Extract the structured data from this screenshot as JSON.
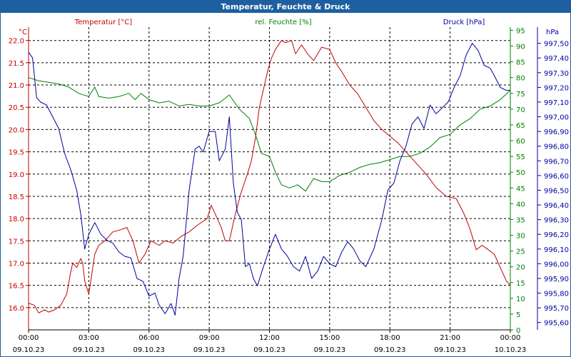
{
  "window": {
    "title": "Temperatur, Feuchte & Druck"
  },
  "colors": {
    "temperature": "#c00000",
    "humidity": "#008000",
    "pressure": "#0000a0",
    "axis": "#000000",
    "grid": "#000000"
  },
  "chart_data": {
    "type": "line",
    "title": "Temperatur, Feuchte & Druck",
    "x_ticks": [
      {
        "h": 0,
        "time": "00:00",
        "date": "09.10.23"
      },
      {
        "h": 3,
        "time": "03:00",
        "date": "09.10.23"
      },
      {
        "h": 6,
        "time": "06:00",
        "date": "09.10.23"
      },
      {
        "h": 9,
        "time": "09:00",
        "date": "09.10.23"
      },
      {
        "h": 12,
        "time": "12:00",
        "date": "09.10.23"
      },
      {
        "h": 15,
        "time": "15:00",
        "date": "09.10.23"
      },
      {
        "h": 18,
        "time": "18:00",
        "date": "09.10.23"
      },
      {
        "h": 21,
        "time": "21:00",
        "date": "09.10.23"
      },
      {
        "h": 24,
        "time": "00:00",
        "date": "10.10.23"
      }
    ],
    "xlim": [
      0,
      24
    ],
    "axes": {
      "temperature": {
        "label": "Temperatur [°C]",
        "unit": "°C",
        "ylim": [
          15.5,
          22.3
        ],
        "ticks": [
          "16.0",
          "16.5",
          "17.0",
          "17.5",
          "18.0",
          "18.5",
          "19.0",
          "19.5",
          "20.0",
          "20.5",
          "21.0",
          "21.5",
          "22.0"
        ]
      },
      "humidity": {
        "label": "rel. Feuchte [%]",
        "unit": "%",
        "ylim": [
          0,
          96
        ],
        "ticks": [
          "0",
          "5",
          "10",
          "15",
          "20",
          "25",
          "30",
          "35",
          "40",
          "45",
          "50",
          "55",
          "60",
          "65",
          "70",
          "75",
          "80",
          "85",
          "90",
          "95"
        ]
      },
      "pressure": {
        "label": "Druck [hPa]",
        "unit": "hPa",
        "ylim": [
          995.55,
          997.61
        ],
        "ticks": [
          "995,60",
          "995,70",
          "995,80",
          "995,90",
          "996,00",
          "996,10",
          "996,20",
          "996,30",
          "996,40",
          "996,50",
          "996,60",
          "996,70",
          "996,80",
          "996,90",
          "997,00",
          "997,10",
          "997,20",
          "997,30",
          "997,40",
          "997,50"
        ]
      }
    },
    "series": [
      {
        "name": "Temperatur",
        "axis": "temperature",
        "color": "#c00000",
        "points": [
          [
            0,
            16.1
          ],
          [
            0.3,
            16.05
          ],
          [
            0.5,
            15.88
          ],
          [
            0.8,
            15.95
          ],
          [
            1.0,
            15.9
          ],
          [
            1.3,
            15.95
          ],
          [
            1.6,
            16.05
          ],
          [
            1.9,
            16.3
          ],
          [
            2.1,
            16.8
          ],
          [
            2.2,
            17.0
          ],
          [
            2.4,
            16.9
          ],
          [
            2.6,
            17.1
          ],
          [
            2.7,
            17.0
          ],
          [
            2.8,
            16.6
          ],
          [
            3.0,
            16.3
          ],
          [
            3.1,
            16.6
          ],
          [
            3.3,
            17.2
          ],
          [
            3.5,
            17.4
          ],
          [
            3.8,
            17.5
          ],
          [
            4.2,
            17.7
          ],
          [
            4.6,
            17.75
          ],
          [
            4.9,
            17.8
          ],
          [
            5.2,
            17.5
          ],
          [
            5.5,
            17.0
          ],
          [
            5.8,
            17.2
          ],
          [
            6.1,
            17.5
          ],
          [
            6.5,
            17.4
          ],
          [
            6.8,
            17.5
          ],
          [
            7.2,
            17.45
          ],
          [
            7.6,
            17.6
          ],
          [
            8.0,
            17.7
          ],
          [
            8.4,
            17.85
          ],
          [
            8.9,
            18.0
          ],
          [
            9.1,
            18.3
          ],
          [
            9.3,
            18.1
          ],
          [
            9.6,
            17.8
          ],
          [
            9.8,
            17.5
          ],
          [
            10.0,
            17.5
          ],
          [
            10.3,
            18.1
          ],
          [
            10.6,
            18.6
          ],
          [
            10.9,
            19.0
          ],
          [
            11.1,
            19.3
          ],
          [
            11.3,
            19.8
          ],
          [
            11.5,
            20.5
          ],
          [
            11.7,
            20.9
          ],
          [
            11.9,
            21.3
          ],
          [
            12.1,
            21.6
          ],
          [
            12.3,
            21.8
          ],
          [
            12.6,
            22.0
          ],
          [
            12.8,
            21.95
          ],
          [
            13.1,
            22.0
          ],
          [
            13.3,
            21.7
          ],
          [
            13.6,
            21.9
          ],
          [
            13.9,
            21.7
          ],
          [
            14.2,
            21.55
          ],
          [
            14.6,
            21.85
          ],
          [
            15.0,
            21.8
          ],
          [
            15.3,
            21.5
          ],
          [
            15.6,
            21.3
          ],
          [
            16.0,
            21.0
          ],
          [
            16.4,
            20.8
          ],
          [
            16.8,
            20.5
          ],
          [
            17.2,
            20.2
          ],
          [
            17.6,
            20.0
          ],
          [
            18.0,
            19.85
          ],
          [
            18.4,
            19.7
          ],
          [
            18.8,
            19.5
          ],
          [
            19.3,
            19.25
          ],
          [
            19.8,
            19.0
          ],
          [
            20.3,
            18.7
          ],
          [
            20.8,
            18.5
          ],
          [
            21.3,
            18.45
          ],
          [
            21.7,
            18.1
          ],
          [
            22.0,
            17.75
          ],
          [
            22.3,
            17.3
          ],
          [
            22.6,
            17.4
          ],
          [
            22.9,
            17.3
          ],
          [
            23.2,
            17.2
          ],
          [
            23.5,
            16.9
          ],
          [
            23.8,
            16.6
          ],
          [
            24.0,
            16.5
          ]
        ]
      },
      {
        "name": "rel. Feuchte",
        "axis": "humidity",
        "color": "#008000",
        "points": [
          [
            0,
            80
          ],
          [
            0.5,
            79
          ],
          [
            1.0,
            78.5
          ],
          [
            1.5,
            78
          ],
          [
            2.0,
            77
          ],
          [
            2.5,
            75
          ],
          [
            3.0,
            74
          ],
          [
            3.3,
            77
          ],
          [
            3.5,
            74
          ],
          [
            4.0,
            73.5
          ],
          [
            4.5,
            74
          ],
          [
            5.0,
            75
          ],
          [
            5.3,
            73
          ],
          [
            5.6,
            75
          ],
          [
            6.0,
            73
          ],
          [
            6.5,
            72
          ],
          [
            7.0,
            72.5
          ],
          [
            7.5,
            71
          ],
          [
            8.0,
            71.5
          ],
          [
            8.5,
            71
          ],
          [
            9.0,
            71
          ],
          [
            9.5,
            72
          ],
          [
            10.0,
            74.5
          ],
          [
            10.5,
            70
          ],
          [
            11.0,
            67
          ],
          [
            11.3,
            62
          ],
          [
            11.6,
            56
          ],
          [
            12.0,
            55
          ],
          [
            12.3,
            50
          ],
          [
            12.6,
            46
          ],
          [
            13.0,
            45
          ],
          [
            13.4,
            46
          ],
          [
            13.8,
            44
          ],
          [
            14.2,
            48
          ],
          [
            14.6,
            47
          ],
          [
            15.0,
            47
          ],
          [
            15.5,
            49
          ],
          [
            16.0,
            50
          ],
          [
            16.5,
            51.5
          ],
          [
            17.0,
            52.5
          ],
          [
            17.5,
            53
          ],
          [
            18.0,
            54
          ],
          [
            18.5,
            55
          ],
          [
            19.0,
            55
          ],
          [
            19.5,
            56
          ],
          [
            20.0,
            58
          ],
          [
            20.5,
            61
          ],
          [
            21.0,
            62
          ],
          [
            21.5,
            65
          ],
          [
            22.0,
            67
          ],
          [
            22.5,
            70
          ],
          [
            23.0,
            71
          ],
          [
            23.5,
            73
          ],
          [
            24.0,
            76
          ]
        ]
      },
      {
        "name": "Druck",
        "axis": "pressure",
        "color": "#0000a0",
        "points": [
          [
            0,
            997.44
          ],
          [
            0.2,
            997.4
          ],
          [
            0.4,
            997.13
          ],
          [
            0.6,
            997.1
          ],
          [
            0.9,
            997.08
          ],
          [
            1.2,
            997.0
          ],
          [
            1.5,
            996.92
          ],
          [
            1.8,
            996.75
          ],
          [
            2.1,
            996.64
          ],
          [
            2.4,
            996.5
          ],
          [
            2.6,
            996.34
          ],
          [
            2.8,
            996.1
          ],
          [
            3.0,
            996.2
          ],
          [
            3.3,
            996.28
          ],
          [
            3.6,
            996.2
          ],
          [
            3.9,
            996.16
          ],
          [
            4.2,
            996.14
          ],
          [
            4.5,
            996.08
          ],
          [
            4.8,
            996.05
          ],
          [
            5.1,
            996.04
          ],
          [
            5.4,
            995.9
          ],
          [
            5.7,
            995.88
          ],
          [
            6.0,
            995.78
          ],
          [
            6.3,
            995.8
          ],
          [
            6.5,
            995.72
          ],
          [
            6.8,
            995.66
          ],
          [
            7.1,
            995.73
          ],
          [
            7.3,
            995.65
          ],
          [
            7.5,
            995.9
          ],
          [
            7.7,
            996.05
          ],
          [
            8.0,
            996.5
          ],
          [
            8.3,
            996.78
          ],
          [
            8.5,
            996.8
          ],
          [
            8.7,
            996.76
          ],
          [
            9.0,
            996.9
          ],
          [
            9.3,
            996.9
          ],
          [
            9.5,
            996.7
          ],
          [
            9.8,
            996.78
          ],
          [
            10.0,
            997.0
          ],
          [
            10.2,
            996.55
          ],
          [
            10.4,
            996.35
          ],
          [
            10.6,
            996.3
          ],
          [
            10.8,
            995.98
          ],
          [
            11.0,
            996.0
          ],
          [
            11.2,
            995.9
          ],
          [
            11.4,
            995.85
          ],
          [
            11.7,
            995.98
          ],
          [
            12.0,
            996.1
          ],
          [
            12.3,
            996.2
          ],
          [
            12.6,
            996.1
          ],
          [
            12.9,
            996.05
          ],
          [
            13.2,
            995.98
          ],
          [
            13.5,
            995.95
          ],
          [
            13.8,
            996.05
          ],
          [
            14.1,
            995.9
          ],
          [
            14.4,
            995.95
          ],
          [
            14.7,
            996.05
          ],
          [
            15.0,
            996.0
          ],
          [
            15.3,
            995.98
          ],
          [
            15.6,
            996.08
          ],
          [
            15.9,
            996.15
          ],
          [
            16.2,
            996.1
          ],
          [
            16.5,
            996.02
          ],
          [
            16.8,
            995.98
          ],
          [
            17.2,
            996.1
          ],
          [
            17.6,
            996.3
          ],
          [
            17.9,
            996.5
          ],
          [
            18.2,
            996.55
          ],
          [
            18.5,
            996.7
          ],
          [
            18.8,
            996.8
          ],
          [
            19.1,
            996.95
          ],
          [
            19.4,
            997.0
          ],
          [
            19.7,
            996.92
          ],
          [
            20.0,
            997.08
          ],
          [
            20.3,
            997.02
          ],
          [
            20.6,
            997.06
          ],
          [
            20.9,
            997.1
          ],
          [
            21.2,
            997.2
          ],
          [
            21.5,
            997.28
          ],
          [
            21.8,
            997.42
          ],
          [
            22.1,
            997.5
          ],
          [
            22.4,
            997.45
          ],
          [
            22.7,
            997.35
          ],
          [
            23.0,
            997.33
          ],
          [
            23.2,
            997.28
          ],
          [
            23.5,
            997.2
          ],
          [
            23.8,
            997.18
          ],
          [
            24.0,
            997.18
          ]
        ]
      }
    ]
  }
}
